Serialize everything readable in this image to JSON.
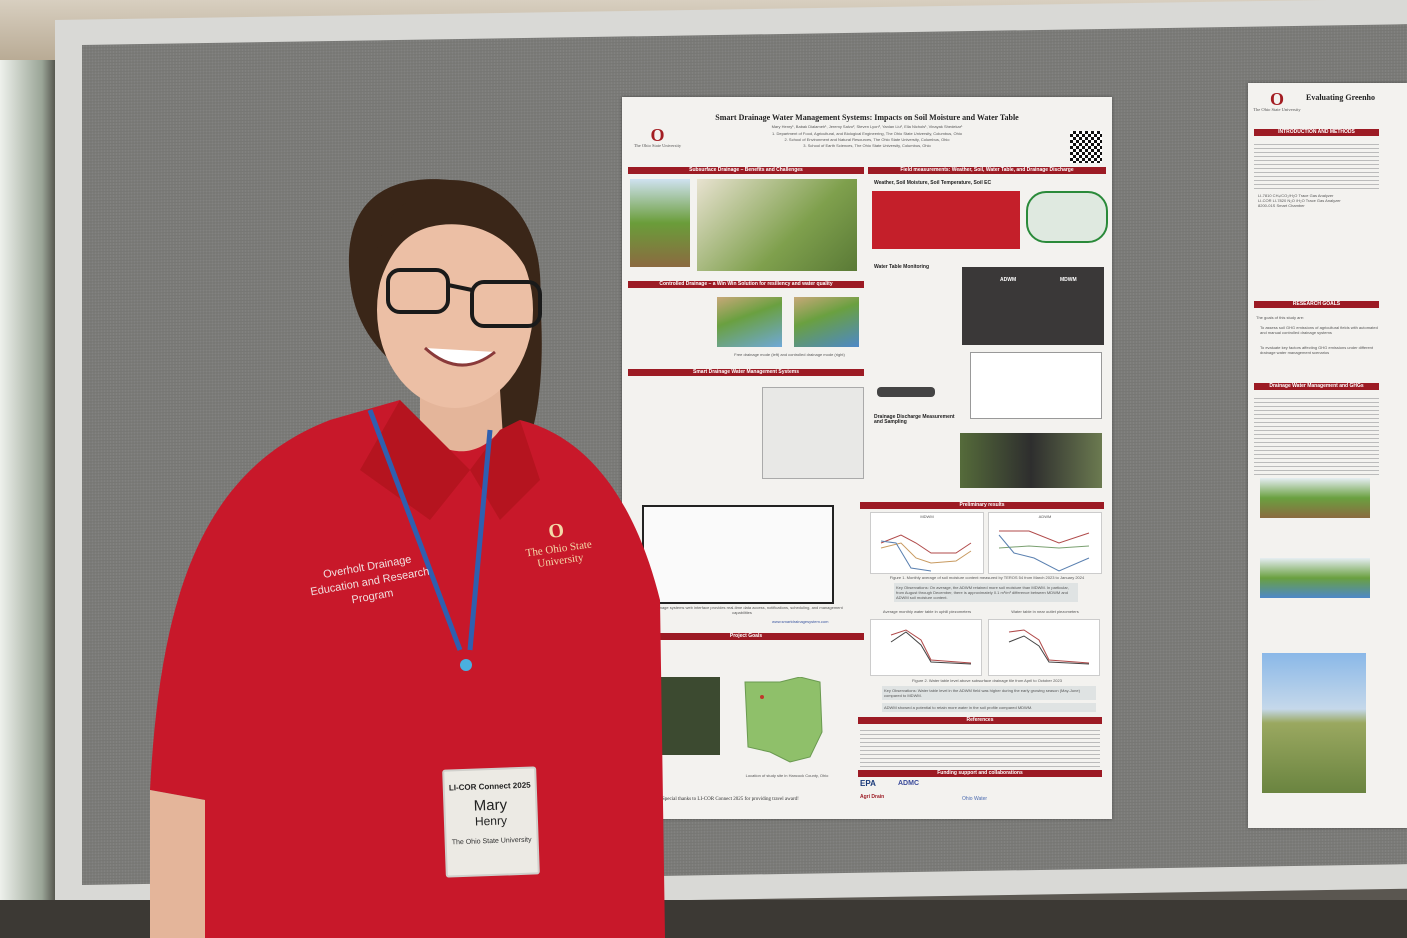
{
  "poster_main": {
    "title": "Smart Drainage Water Management Systems: Impacts on Soil Moisture and Water Table",
    "authors": "Mary Henry¹, Babak Dialameh¹, Jeremy Salvo², Steven Lyon³, Yanlan Liu², Ella Nichols¹, Vinayak Shedekar¹",
    "affiliations": [
      "1. Department of Food, Agricultural, and Biological Engineering, The Ohio State University, Columbus, Ohio",
      "2. School of Environment and Natural Resources, The Ohio State University, Columbus, Ohio",
      "3. School of Earth Sciences, The Ohio State University, Columbus, Ohio"
    ],
    "logo_text": "The Ohio State University",
    "sections": {
      "subsurface": "Subsurface Drainage – Benefits and Challenges",
      "field": "Field measurements: Weather, Soil, Water Table, and Drainage Discharge",
      "controlled": "Controlled Drainage – a Win Win Solution for resiliency and water quality",
      "smart": "Smart Drainage Water Management Systems",
      "goals": "Project Goals",
      "prelim": "Preliminary results",
      "references": "References",
      "funding": "Funding support and collaborations"
    },
    "subheads": {
      "weather": "Weather, Soil Moisture, Soil Temperature, Soil EC",
      "water_table": "Water Table Monitoring",
      "discharge": "Drainage Discharge Measurement and Sampling"
    },
    "chart_titles": [
      "MDWM",
      "ADWM",
      "Average monthly water table in uphill piezometers",
      "Water table in near outlet piezometers"
    ],
    "map_labels": [
      "ADWM",
      "MDWM"
    ],
    "captions": {
      "controlled": "Free drainage mode (left) and controlled drainage mode (right)",
      "figure1": "Figure 1. Monthly average of soil moisture content measured by TEROS 54 from March 2023 to January 2024",
      "figure2": "Figure 2. Water table level above subsurface drainage tile from April to October 2023",
      "location": "Location of study site in Hancock County, Ohio",
      "interface": "Smart drainage systems web interface provides real-time data access, notifications, scheduling, and management capabilities"
    },
    "key_obs_1": "Key Observations: On average, the ADWM retained more soil moisture than MDWM. In particular, from August through December, there is approximately 0.1 m³/m³ difference between MDWM and ADWM soil moisture content.",
    "key_obs_2": "Key Observations: Water table level in the ADWM field was higher during the early growing season (May-June) compared to MDWM.",
    "key_obs_3": "ADWM showed a potential to retain more water in the soil profile compared MDWM.",
    "website": "www.smartdrainagesystem.com",
    "thanks": "Special thanks to LI-COR Connect 2025 for providing travel award!",
    "funders": [
      "EPA",
      "ADMC",
      "Agri Drain",
      "Ohio Water"
    ]
  },
  "poster_right": {
    "title": "Evaluating Greenho",
    "logo_text": "The Ohio State University",
    "sections": [
      "INTRODUCTION AND METHODS",
      "RESEARCH GOALS",
      "Drainage Water Management and GHGs"
    ],
    "goals_intro": "The goals of this study are:",
    "goals": [
      "To assess soil GHG emissions of agricultural fields with automated and manual controlled drainage systems",
      "To evaluate key factors affecting GHG emissions under different drainage water management scenarios"
    ],
    "intro_items": [
      "LI-7810 CH₄/CO₂/H₂O Trace Gas Analyzer",
      "LI-COR LI-7820 N₂O /H₂O Trace Gas Analyzer",
      "8200-01S Smart Chamber"
    ]
  },
  "shirt": {
    "left_embroidery": [
      "Overholt Drainage",
      "Education and Research",
      "Program"
    ],
    "right_embroidery": "The Ohio State University"
  },
  "badge": {
    "event": "LI-COR Connect 2025",
    "first_name": "Mary",
    "last_name": "Henry",
    "affiliation": "The Ohio State University"
  },
  "colors": {
    "osu_scarlet": "#9c1b24",
    "shirt_red": "#c8182a",
    "board_gray": "#777774",
    "lanyard_blue": "#2f5fb0"
  }
}
